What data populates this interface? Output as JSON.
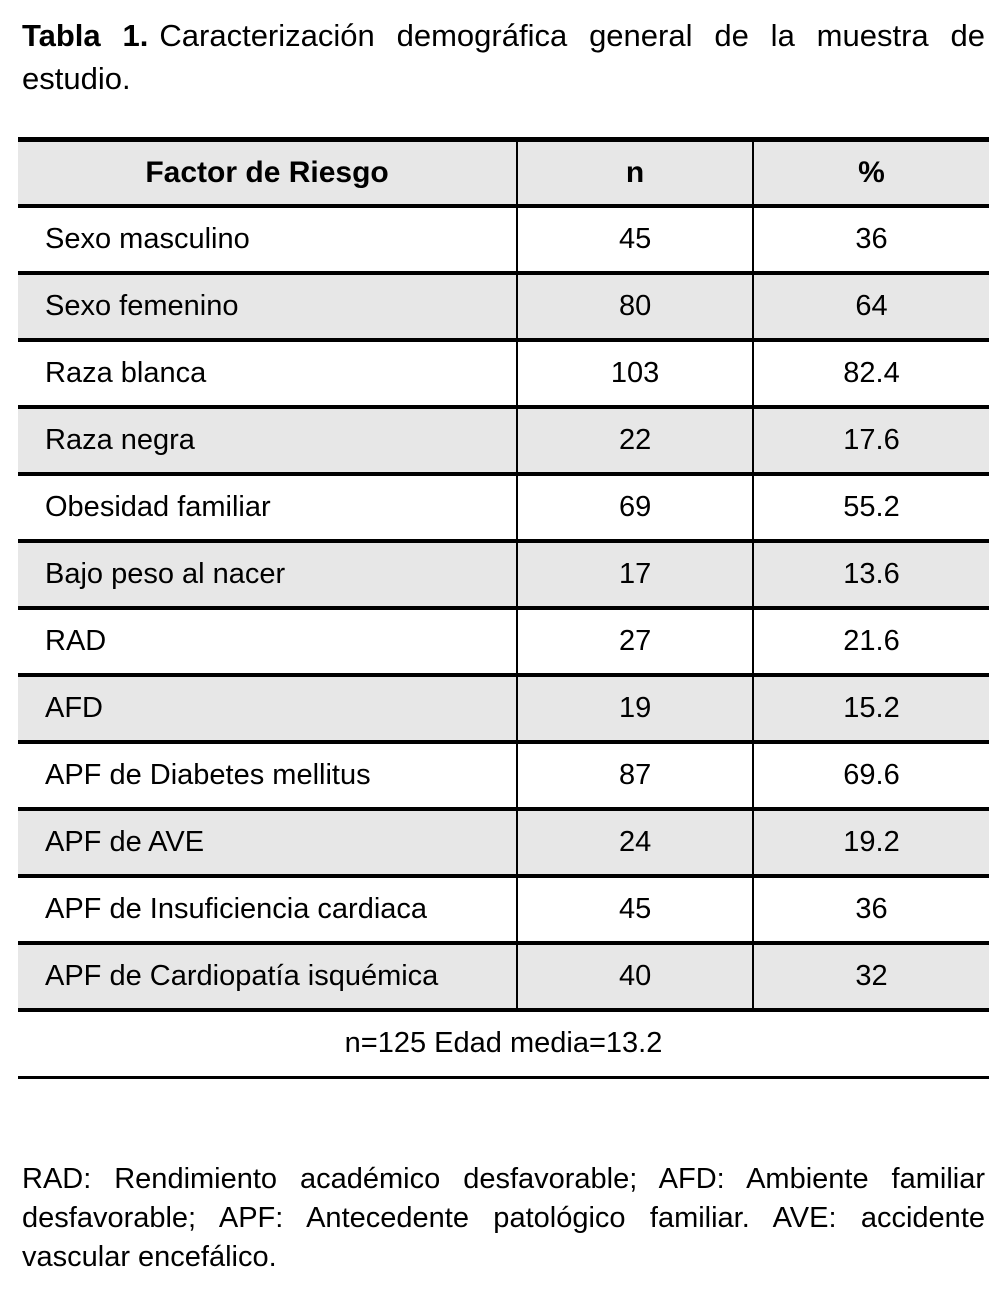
{
  "caption": {
    "label": "Tabla 1.",
    "text": "Caracterización demográfica general de la muestra de estudio."
  },
  "table": {
    "headers": [
      "Factor de Riesgo",
      "n",
      "%"
    ],
    "rows": [
      {
        "factor": "Sexo masculino",
        "n": "45",
        "pct": "36"
      },
      {
        "factor": "Sexo femenino",
        "n": "80",
        "pct": "64"
      },
      {
        "factor": "Raza blanca",
        "n": "103",
        "pct": "82.4"
      },
      {
        "factor": "Raza negra",
        "n": "22",
        "pct": "17.6"
      },
      {
        "factor": "Obesidad familiar",
        "n": "69",
        "pct": "55.2"
      },
      {
        "factor": "Bajo peso al nacer",
        "n": "17",
        "pct": "13.6"
      },
      {
        "factor": "RAD",
        "n": "27",
        "pct": "21.6"
      },
      {
        "factor": "AFD",
        "n": "19",
        "pct": "15.2"
      },
      {
        "factor": "APF de Diabetes mellitus",
        "n": "87",
        "pct": "69.6"
      },
      {
        "factor": "APF de AVE",
        "n": "24",
        "pct": "19.2"
      },
      {
        "factor": "APF de Insuficiencia cardiaca",
        "n": "45",
        "pct": "36"
      },
      {
        "factor": "APF de Cardiopatía isquémica",
        "n": "40",
        "pct": "32"
      }
    ],
    "footer": "n=125 Edad media=13.2"
  },
  "footnote": "RAD: Rendimiento académico desfavorable; AFD: Ambiente familiar desfavorable; APF: Antecedente patológico familiar. AVE: accidente vascular encefálico.",
  "colors": {
    "stripe": "#e7e7e7",
    "border": "#000000",
    "background": "#ffffff",
    "text": "#000000"
  }
}
